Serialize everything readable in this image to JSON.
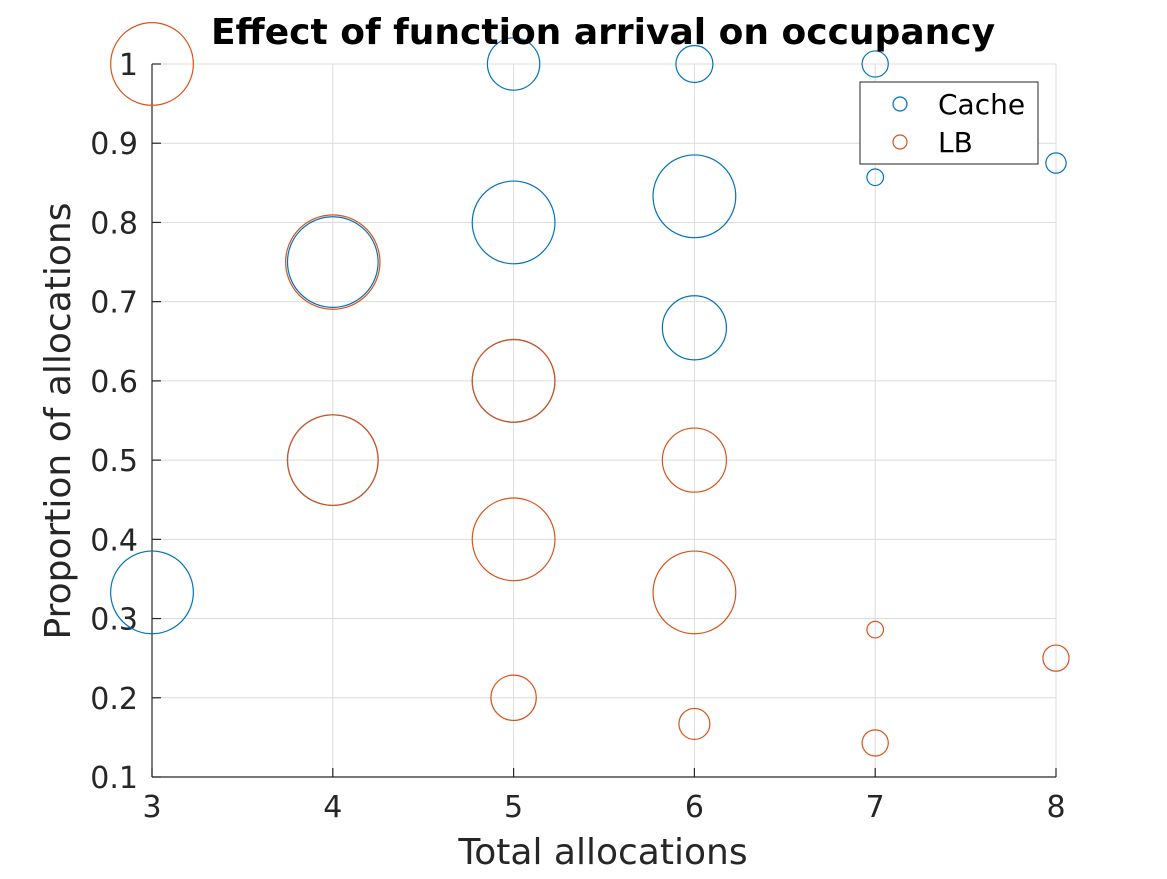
{
  "colors": {
    "cache": "#0072BD",
    "lb": "#D95319"
  },
  "chart_data": {
    "type": "scatter",
    "variant": "bubble",
    "title": "Effect of function arrival on occupancy",
    "xlabel": "Total allocations",
    "ylabel": "Proportion of allocations",
    "xlim": [
      3,
      8
    ],
    "ylim": [
      0.1,
      1
    ],
    "xticks": [
      "3",
      "4",
      "5",
      "6",
      "7",
      "8"
    ],
    "yticks": [
      "0.1",
      "0.2",
      "0.3",
      "0.4",
      "0.5",
      "0.6",
      "0.7",
      "0.8",
      "0.9",
      "1"
    ],
    "grid": true,
    "legend": "top-right",
    "series": [
      {
        "name": "Cache",
        "color": "#0072BD",
        "points": [
          {
            "x": 3,
            "y": 0.333,
            "size": 5
          },
          {
            "x": 4,
            "y": 0.75,
            "size": 6
          },
          {
            "x": 4,
            "y": 0.5,
            "size": 6
          },
          {
            "x": 5,
            "y": 1.0,
            "size": 2
          },
          {
            "x": 5,
            "y": 0.8,
            "size": 5
          },
          {
            "x": 5,
            "y": 0.6,
            "size": 5
          },
          {
            "x": 6,
            "y": 1.0,
            "size": 1
          },
          {
            "x": 6,
            "y": 0.833,
            "size": 5
          },
          {
            "x": 6,
            "y": 0.667,
            "size": 3
          },
          {
            "x": 7,
            "y": 1.0,
            "size": 0.5
          },
          {
            "x": 7,
            "y": 0.857,
            "size": 0.2
          },
          {
            "x": 8,
            "y": 0.875,
            "size": 0.3
          }
        ]
      },
      {
        "name": "LB",
        "color": "#D95319",
        "points": [
          {
            "x": 3,
            "y": 1.0,
            "size": 5
          },
          {
            "x": 4,
            "y": 0.75,
            "size": 6.5
          },
          {
            "x": 4,
            "y": 0.5,
            "size": 6
          },
          {
            "x": 5,
            "y": 0.6,
            "size": 5
          },
          {
            "x": 5,
            "y": 0.4,
            "size": 5
          },
          {
            "x": 5,
            "y": 0.2,
            "size": 1.5
          },
          {
            "x": 6,
            "y": 0.5,
            "size": 3
          },
          {
            "x": 6,
            "y": 0.333,
            "size": 5
          },
          {
            "x": 6,
            "y": 0.167,
            "size": 0.7
          },
          {
            "x": 7,
            "y": 0.286,
            "size": 0.2
          },
          {
            "x": 7,
            "y": 0.143,
            "size": 0.5
          },
          {
            "x": 8,
            "y": 0.25,
            "size": 0.5
          }
        ]
      }
    ]
  }
}
